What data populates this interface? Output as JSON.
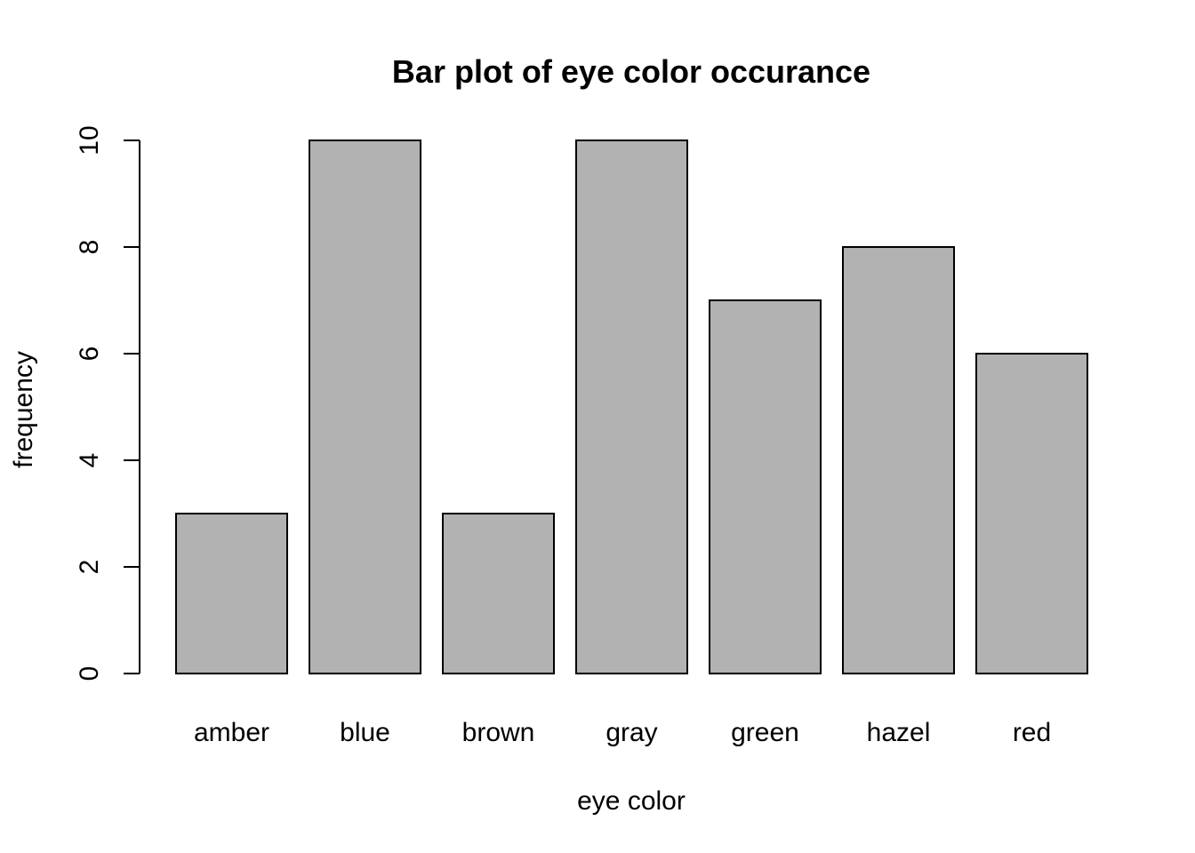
{
  "chart_data": {
    "type": "bar",
    "title": "Bar plot of eye color occurance",
    "xlabel": "eye color",
    "ylabel": "frequency",
    "categories": [
      "amber",
      "blue",
      "brown",
      "gray",
      "green",
      "hazel",
      "red"
    ],
    "values": [
      3,
      10,
      3,
      10,
      7,
      8,
      6
    ],
    "ylim": [
      0,
      10
    ],
    "yticks": [
      0,
      2,
      4,
      6,
      8,
      10
    ],
    "grid": false,
    "legend": "none",
    "colors": {
      "bar_fill": "#b2b2b2",
      "bar_stroke": "#000000",
      "background": "#ffffff"
    }
  }
}
